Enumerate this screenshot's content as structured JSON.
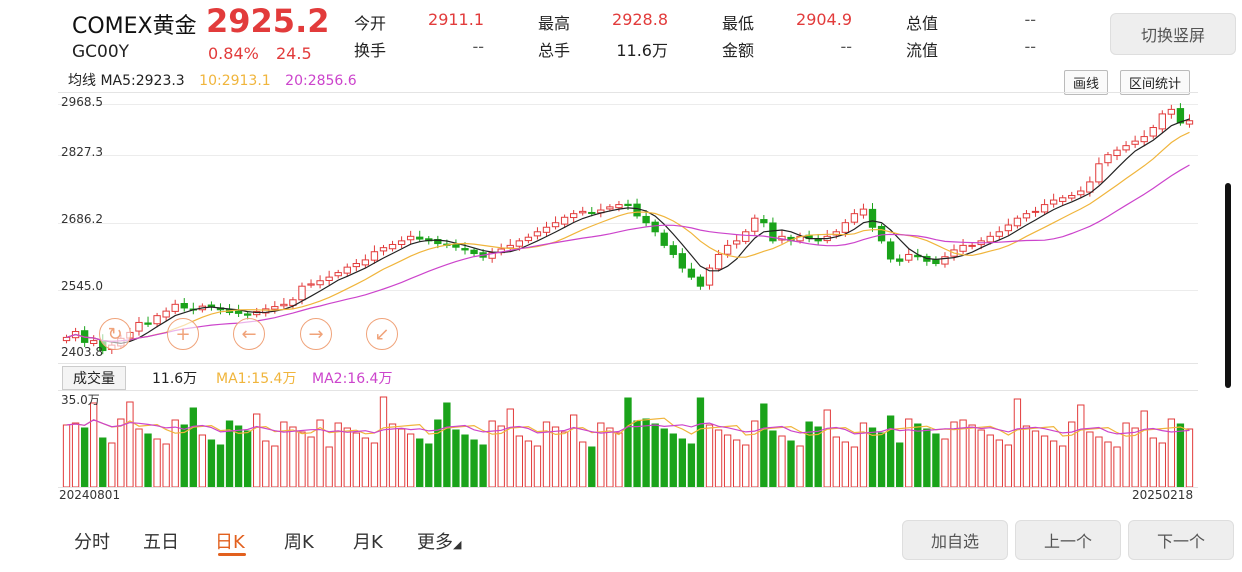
{
  "header": {
    "name": "COMEX黄金",
    "price": "2925.2",
    "code": "GC00Y",
    "change_pct": "0.84%",
    "change_val": "24.5",
    "toggle_label": "切换竖屏"
  },
  "stats": [
    {
      "label": "今开",
      "value": "2911.1",
      "color": "#e23b3b"
    },
    {
      "label": "最高",
      "value": "2928.8",
      "color": "#e23b3b"
    },
    {
      "label": "最低",
      "value": "2904.9",
      "color": "#e23b3b"
    },
    {
      "label": "总值",
      "value": "--",
      "color": "#555555"
    },
    {
      "label": "换手",
      "value": "--",
      "color": "#555555"
    },
    {
      "label": "总手",
      "value": "11.6万",
      "color": "#222222"
    },
    {
      "label": "金额",
      "value": "--",
      "color": "#555555"
    },
    {
      "label": "流值",
      "value": "--",
      "color": "#555555"
    }
  ],
  "ma": {
    "label": "均线 MA5:2923.3",
    "ma10": "10:2913.1",
    "ma20": "20:2856.6",
    "colors": {
      "ma5": "#222222",
      "ma10": "#f0b53c",
      "ma20": "#cc44cc"
    }
  },
  "tools": {
    "draw": "画线",
    "range": "区间统计"
  },
  "price_axis": [
    "2968.5",
    "2827.3",
    "2686.2",
    "2545.0",
    "2403.8"
  ],
  "volume": {
    "label": "成交量",
    "value": "11.6万",
    "ma1": "MA1:15.4万",
    "ma2": "MA2:16.4万",
    "axis_max": "35.0万"
  },
  "dates": {
    "start": "20240801",
    "end": "20250218"
  },
  "tabs": [
    {
      "label": "分时",
      "active": false
    },
    {
      "label": "五日",
      "active": false
    },
    {
      "label": "日K",
      "active": true
    },
    {
      "label": "周K",
      "active": false
    },
    {
      "label": "月K",
      "active": false
    },
    {
      "label": "更多",
      "active": false
    }
  ],
  "actions": {
    "add": "加自选",
    "prev": "上一个",
    "next": "下一个"
  },
  "controls": [
    "plus-icon",
    "arrow-left-icon",
    "arrow-right-icon",
    "shrink-icon"
  ],
  "colors": {
    "up": "#e23b3b",
    "down": "#1aa31a",
    "grid": "#e4e4e4",
    "accent": "#e2601e"
  },
  "chart_data": {
    "type": "candlestick",
    "ylim": [
      2403.8,
      2968.5
    ],
    "closes": [
      2447,
      2460,
      2436,
      2440,
      2418,
      2430,
      2445,
      2458,
      2480,
      2476,
      2495,
      2505,
      2520,
      2512,
      2508,
      2516,
      2514,
      2508,
      2502,
      2500,
      2496,
      2504,
      2510,
      2515,
      2520,
      2530,
      2560,
      2565,
      2572,
      2580,
      2590,
      2602,
      2610,
      2618,
      2636,
      2645,
      2652,
      2660,
      2670,
      2664,
      2660,
      2654,
      2650,
      2646,
      2640,
      2632,
      2624,
      2634,
      2642,
      2650,
      2660,
      2668,
      2680,
      2690,
      2700,
      2712,
      2720,
      2725,
      2722,
      2728,
      2735,
      2740,
      2738,
      2715,
      2700,
      2680,
      2650,
      2630,
      2600,
      2580,
      2560,
      2600,
      2630,
      2650,
      2660,
      2680,
      2710,
      2700,
      2660,
      2670,
      2660,
      2670,
      2665,
      2660,
      2670,
      2680,
      2700,
      2720,
      2730,
      2690,
      2660,
      2620,
      2615,
      2630,
      2625,
      2615,
      2610,
      2625,
      2640,
      2650,
      2650,
      2660,
      2670,
      2680,
      2695,
      2710,
      2720,
      2725,
      2740,
      2750,
      2755,
      2760,
      2770,
      2790,
      2830,
      2850,
      2860,
      2870,
      2880,
      2890,
      2910,
      2940,
      2950,
      2920,
      2925
    ]
  }
}
